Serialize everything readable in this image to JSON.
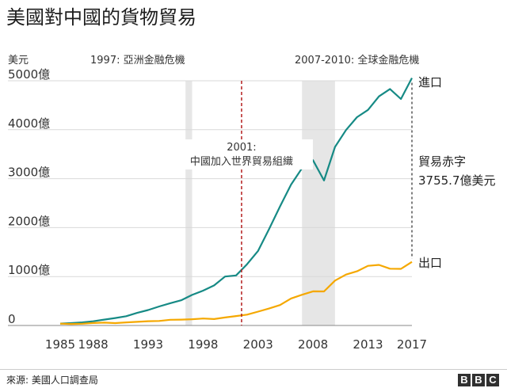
{
  "title": "美國對中國的貨物貿易",
  "source": "來源: 美國人口調查局",
  "logo": "BBC",
  "colors": {
    "import": "#168a85",
    "export": "#f5a800",
    "event_line": "#b51f1f",
    "shade": "#e6e6e6",
    "grid": "#d9d9d9",
    "deficit_line": "#555555"
  },
  "chart_data": {
    "type": "line",
    "title": "美國對中國的貨物貿易",
    "unit_label": "美元",
    "x": [
      1985,
      1986,
      1987,
      1988,
      1989,
      1990,
      1991,
      1992,
      1993,
      1994,
      1995,
      1996,
      1997,
      1998,
      1999,
      2000,
      2001,
      2002,
      2003,
      2004,
      2005,
      2006,
      2007,
      2008,
      2009,
      2010,
      2011,
      2012,
      2013,
      2014,
      2015,
      2016,
      2017
    ],
    "x_ticks": [
      1985,
      1988,
      1993,
      1998,
      2003,
      2008,
      2013,
      2017
    ],
    "x_tick_labels": [
      "1985",
      "1988",
      "1993",
      "1998",
      "2003",
      "2008",
      "2013",
      "2017"
    ],
    "xlim": [
      1985,
      2017
    ],
    "ylim": [
      0,
      5000
    ],
    "y_ticks": [
      0,
      1000,
      2000,
      3000,
      4000,
      5000
    ],
    "y_tick_labels": [
      "0",
      "1000億",
      "2000億",
      "3000億",
      "4000億",
      "5000億"
    ],
    "grid": true,
    "series": [
      {
        "name": "進口",
        "color": "#168a85",
        "values": [
          39,
          48,
          63,
          85,
          120,
          152,
          190,
          257,
          315,
          388,
          455,
          515,
          625,
          712,
          818,
          1000,
          1023,
          1252,
          1524,
          1967,
          2434,
          2878,
          3215,
          3377,
          2963,
          3649,
          3994,
          4256,
          4404,
          4682,
          4832,
          4628,
          5056
        ]
      },
      {
        "name": "出口",
        "color": "#f5a800",
        "values": [
          38,
          31,
          35,
          50,
          58,
          48,
          63,
          74,
          87,
          93,
          117,
          120,
          128,
          142,
          131,
          163,
          192,
          221,
          283,
          347,
          418,
          552,
          628,
          698,
          695,
          917,
          1041,
          1106,
          1219,
          1238,
          1160,
          1157,
          1300
        ]
      }
    ],
    "shaded_periods": [
      {
        "label": "1997: 亞洲金融危機",
        "start": 1996.4,
        "end": 1997.0
      },
      {
        "label": "2007-2010: 全球金融危機",
        "start": 2007.0,
        "end": 2010.0
      }
    ],
    "events": [
      {
        "year": 2001,
        "label_line1": "2001:",
        "label_line2": "中國加入世界貿易組織"
      }
    ],
    "annotations": {
      "deficit_line1": "貿易赤字",
      "deficit_line2": "3755.7億美元",
      "import_end_label": "進口",
      "export_end_label": "出口"
    }
  }
}
